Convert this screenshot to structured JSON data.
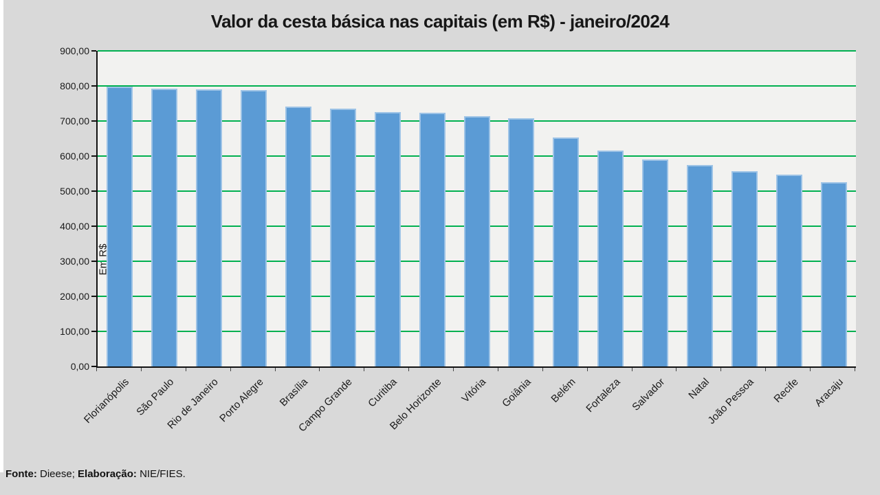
{
  "page": {
    "background": "#d9d9d9",
    "footer": {
      "source_label": "Fonte:",
      "source_value": " Dieese; ",
      "elaboration_label": "Elaboração:",
      "elaboration_value": " NIE/FIES."
    }
  },
  "chart_data": {
    "type": "bar",
    "title": "Valor da cesta básica nas capitais (em R$) - janeiro/2024",
    "xlabel": "",
    "ylabel": "Em R$",
    "categories": [
      "Florianópolis",
      "São Paulo",
      "Rio de Janeiro",
      "Porto Alegre",
      "Brasília",
      "Campo Grande",
      "Curitiba",
      "Belo Horizonte",
      "Vitória",
      "Goiânia",
      "Belém",
      "Fortaleza",
      "Salvador",
      "Natal",
      "João Pessoa",
      "Recife",
      "Aracaju"
    ],
    "values": [
      798,
      793,
      791,
      789,
      742,
      736,
      726,
      723,
      714,
      707,
      652,
      616,
      590,
      574,
      557,
      548,
      526
    ],
    "ylim": [
      0,
      900
    ],
    "ytick_values": [
      0,
      100,
      200,
      300,
      400,
      500,
      600,
      700,
      800,
      900
    ],
    "ytick_labels": [
      "0,00",
      "100,00",
      "200,00",
      "300,00",
      "400,00",
      "500,00",
      "600,00",
      "700,00",
      "800,00",
      "900,00"
    ],
    "grid": "horizontal",
    "legend": "none",
    "colors": {
      "bar_fill": "#5B9BD5",
      "bar_border": "#9DC3E6",
      "gridline": "#00B050",
      "plot_background": "#F2F2F0",
      "page_background": "#D9D9D9",
      "axis": "#111111",
      "text": "#1A1A1A"
    }
  }
}
